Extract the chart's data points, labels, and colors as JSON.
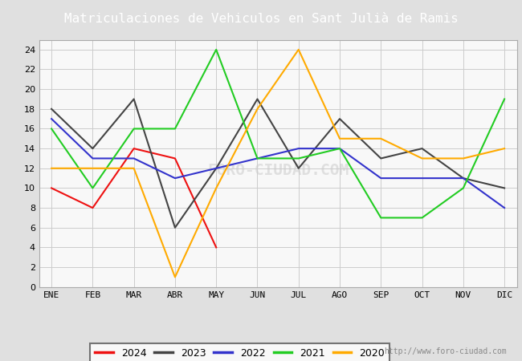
{
  "title": "Matriculaciones de Vehiculos en Sant Julià de Ramis",
  "title_bg_color": "#4a86c8",
  "title_text_color": "#ffffff",
  "months": [
    "ENE",
    "FEB",
    "MAR",
    "ABR",
    "MAY",
    "JUN",
    "JUL",
    "AGO",
    "SEP",
    "OCT",
    "NOV",
    "DIC"
  ],
  "series": {
    "2024": {
      "color": "#ee1111",
      "data": [
        10,
        8,
        14,
        13,
        4,
        null,
        null,
        null,
        null,
        null,
        null,
        null
      ]
    },
    "2023": {
      "color": "#444444",
      "data": [
        18,
        14,
        19,
        6,
        12,
        19,
        12,
        17,
        13,
        14,
        11,
        10
      ]
    },
    "2022": {
      "color": "#3333cc",
      "data": [
        17,
        13,
        13,
        11,
        12,
        13,
        14,
        14,
        11,
        11,
        11,
        8
      ]
    },
    "2021": {
      "color": "#22cc22",
      "data": [
        16,
        10,
        16,
        16,
        24,
        13,
        13,
        14,
        7,
        7,
        10,
        19
      ]
    },
    "2020": {
      "color": "#ffaa00",
      "data": [
        12,
        12,
        12,
        1,
        10,
        18,
        24,
        15,
        15,
        13,
        13,
        14
      ]
    }
  },
  "ylim": [
    0,
    25
  ],
  "yticks": [
    0,
    2,
    4,
    6,
    8,
    10,
    12,
    14,
    16,
    18,
    20,
    22,
    24
  ],
  "grid_color": "#cccccc",
  "outer_bg": "#e0e0e0",
  "plot_bg_color": "#f8f8f8",
  "footer_text": "http://www.foro-ciudad.com",
  "legend_order": [
    "2024",
    "2023",
    "2022",
    "2021",
    "2020"
  ],
  "watermark": "FORO-CIUDAD.COM"
}
